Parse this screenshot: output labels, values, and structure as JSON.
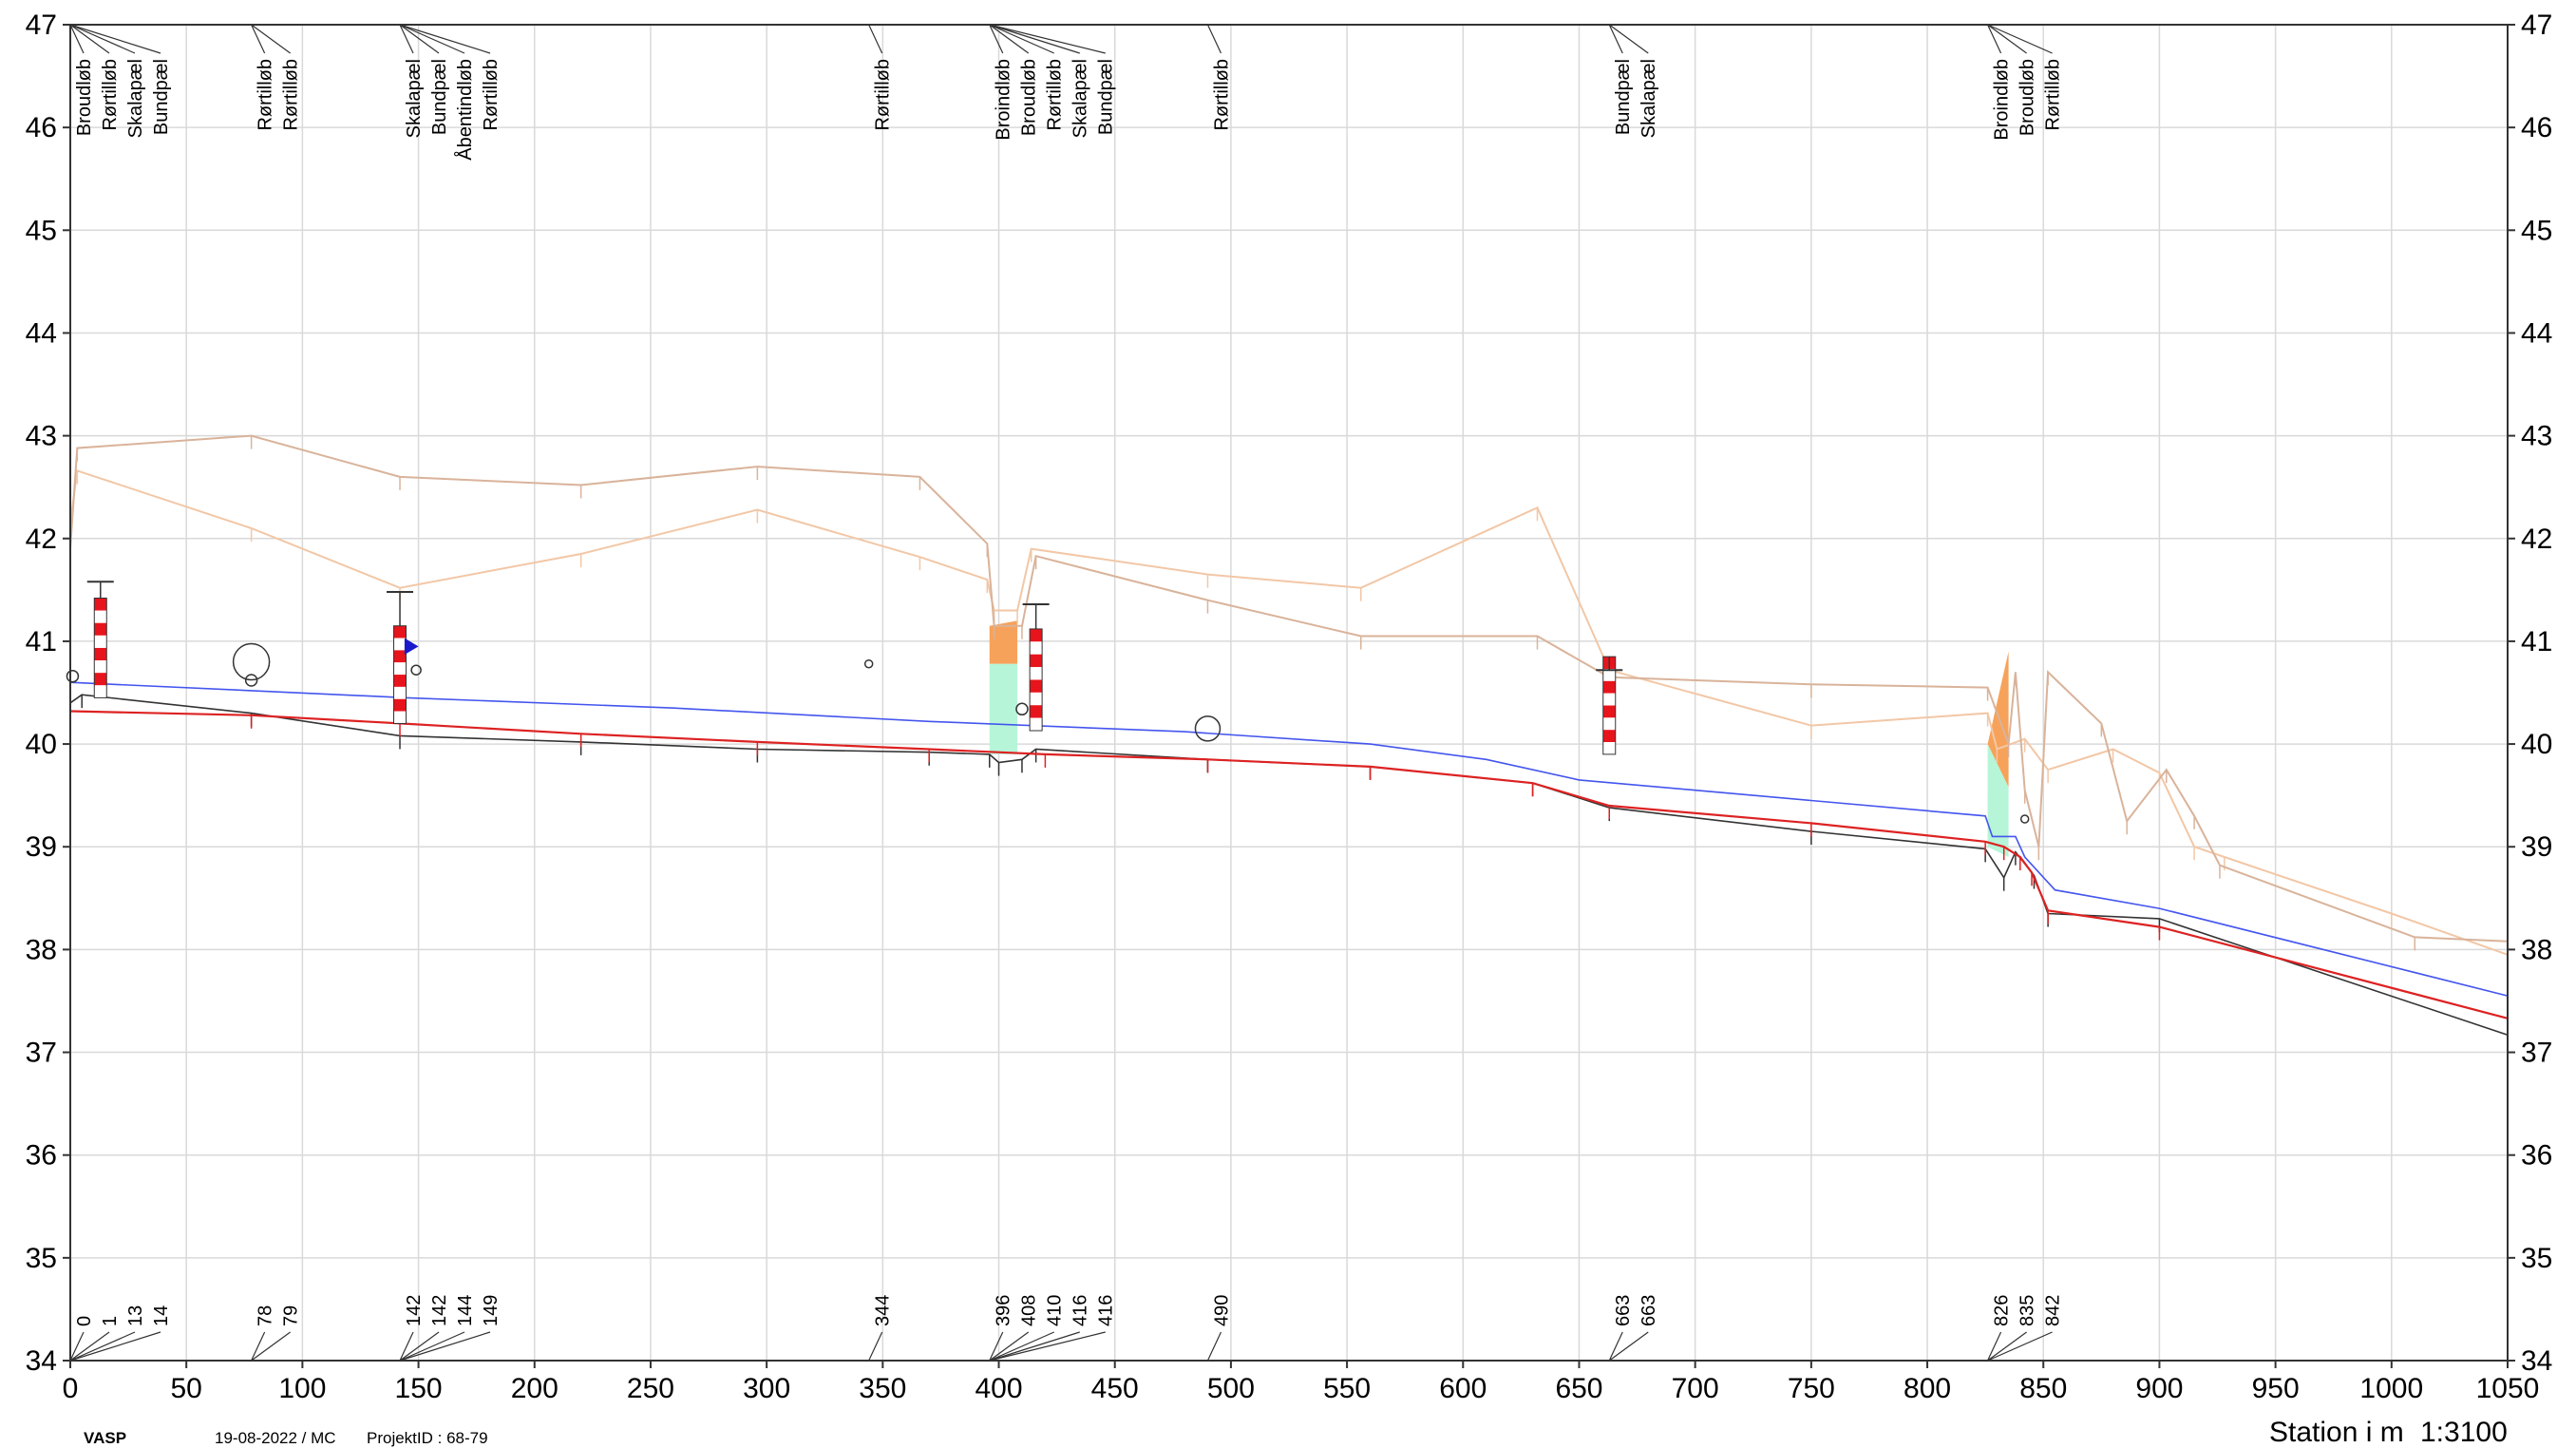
{
  "footer": {
    "logo": "VASP",
    "date_user": "19-08-2022 / MC",
    "project": "ProjektID : 68-79",
    "station_label": "Station i m",
    "scale": "1:3100"
  },
  "axes": {
    "x_range": [
      0,
      1050
    ],
    "y_range": [
      34,
      47
    ],
    "x_ticks": [
      0,
      50,
      100,
      150,
      200,
      250,
      300,
      350,
      400,
      450,
      500,
      550,
      600,
      650,
      700,
      750,
      800,
      850,
      900,
      950,
      1000,
      1050
    ],
    "y_ticks": [
      34,
      35,
      36,
      37,
      38,
      39,
      40,
      41,
      42,
      43,
      44,
      45,
      46,
      47
    ]
  },
  "colors": {
    "grid": "#d9d9d9",
    "frame": "#333333",
    "water_line": "#4455ee",
    "bottom_line": "#dd2222",
    "pipe_bottom_line": "#333333",
    "terrain_1": "#d9b39a",
    "terrain_2": "#f2c7a6",
    "well_red": "#e8141c",
    "fill_orange": "#f7a25a",
    "fill_green": "#b6f5d8",
    "marker_blue": "#1a1acc"
  },
  "object_labels": [
    {
      "station": 0,
      "lines": [
        "Broudløb",
        "Rørtilløb",
        "Skalapæl",
        "Bundpæl"
      ]
    },
    {
      "station": 78,
      "lines": [
        "Rørtilløb",
        "Rørtilløb"
      ]
    },
    {
      "station": 142,
      "lines": [
        "Skalapæl",
        "Bundpæl",
        "Åbentindløb",
        "Rørtilløb"
      ]
    },
    {
      "station": 344,
      "lines": [
        "Rørtilløb"
      ]
    },
    {
      "station": 396,
      "lines": [
        "Broindløb",
        "Broudløb",
        "Rørtilløb",
        "Skalapæl",
        "Bundpæl"
      ]
    },
    {
      "station": 490,
      "lines": [
        "Rørtilløb"
      ]
    },
    {
      "station": 663,
      "lines": [
        "Bundpæl",
        "Skalapæl"
      ]
    },
    {
      "station": 826,
      "lines": [
        "Broindløb",
        "Broudløb",
        "Rørtilløb"
      ]
    }
  ],
  "station_labels": [
    {
      "station": 0,
      "lines": [
        "0",
        "1",
        "13",
        "14"
      ]
    },
    {
      "station": 78,
      "lines": [
        "78",
        "79"
      ]
    },
    {
      "station": 142,
      "lines": [
        "142",
        "142",
        "144",
        "149"
      ]
    },
    {
      "station": 344,
      "lines": [
        "344"
      ]
    },
    {
      "station": 396,
      "lines": [
        "396",
        "408",
        "410",
        "416",
        "416"
      ]
    },
    {
      "station": 490,
      "lines": [
        "490"
      ]
    },
    {
      "station": 663,
      "lines": [
        "663",
        "663"
      ]
    },
    {
      "station": 826,
      "lines": [
        "826",
        "835",
        "842"
      ]
    }
  ],
  "chart_data": {
    "type": "line",
    "title": "",
    "xlabel": "Station i m",
    "ylabel": "",
    "xlim": [
      0,
      1050
    ],
    "ylim": [
      34,
      47
    ],
    "grid": true,
    "series": [
      {
        "key": "water",
        "points": [
          [
            0,
            40.6
          ],
          [
            145,
            40.45
          ],
          [
            260,
            40.35
          ],
          [
            370,
            40.22
          ],
          [
            480,
            40.12
          ],
          [
            560,
            40.0
          ],
          [
            610,
            39.85
          ],
          [
            650,
            39.65
          ],
          [
            700,
            39.55
          ],
          [
            825,
            39.3
          ],
          [
            828,
            39.1
          ],
          [
            835,
            39.1
          ],
          [
            838,
            39.1
          ],
          [
            842,
            38.9
          ],
          [
            855,
            38.58
          ],
          [
            900,
            38.4
          ],
          [
            1050,
            37.55
          ]
        ]
      },
      {
        "key": "bottom",
        "points": [
          [
            0,
            40.32
          ],
          [
            78,
            40.28
          ],
          [
            142,
            40.2
          ],
          [
            220,
            40.1
          ],
          [
            296,
            40.02
          ],
          [
            370,
            39.95
          ],
          [
            420,
            39.9
          ],
          [
            490,
            39.85
          ],
          [
            560,
            39.78
          ],
          [
            630,
            39.62
          ],
          [
            663,
            39.4
          ],
          [
            750,
            39.23
          ],
          [
            825,
            39.05
          ],
          [
            833,
            39.0
          ],
          [
            840,
            38.9
          ],
          [
            845,
            38.75
          ],
          [
            852,
            38.38
          ],
          [
            900,
            38.22
          ],
          [
            1050,
            37.33
          ]
        ]
      },
      {
        "key": "pipe_bottom",
        "points": [
          [
            0,
            40.4
          ],
          [
            5,
            40.48
          ],
          [
            78,
            40.3
          ],
          [
            142,
            40.08
          ],
          [
            220,
            40.02
          ],
          [
            296,
            39.95
          ],
          [
            370,
            39.92
          ],
          [
            396,
            39.9
          ],
          [
            400,
            39.82
          ],
          [
            410,
            39.85
          ],
          [
            416,
            39.95
          ],
          [
            490,
            39.85
          ],
          [
            560,
            39.78
          ],
          [
            630,
            39.62
          ],
          [
            663,
            39.38
          ],
          [
            750,
            39.15
          ],
          [
            825,
            38.98
          ],
          [
            833,
            38.7
          ],
          [
            838,
            38.95
          ],
          [
            846,
            38.72
          ],
          [
            852,
            38.35
          ],
          [
            900,
            38.3
          ],
          [
            1050,
            37.17
          ]
        ]
      },
      {
        "key": "terrain_1",
        "points": [
          [
            0,
            41.9
          ],
          [
            3,
            42.88
          ],
          [
            78,
            43.0
          ],
          [
            142,
            42.6
          ],
          [
            220,
            42.52
          ],
          [
            296,
            42.7
          ],
          [
            366,
            42.6
          ],
          [
            395,
            41.95
          ],
          [
            398,
            41.15
          ],
          [
            410,
            41.15
          ],
          [
            416,
            41.83
          ],
          [
            490,
            41.4
          ],
          [
            556,
            41.05
          ],
          [
            632,
            41.05
          ],
          [
            663,
            40.65
          ],
          [
            750,
            40.58
          ],
          [
            826,
            40.55
          ],
          [
            835,
            40.0
          ],
          [
            838,
            40.7
          ],
          [
            842,
            39.55
          ],
          [
            848,
            39.0
          ],
          [
            852,
            40.7
          ],
          [
            875,
            40.2
          ],
          [
            886,
            39.25
          ],
          [
            903,
            39.75
          ],
          [
            915,
            39.3
          ],
          [
            926,
            38.82
          ],
          [
            1010,
            38.12
          ],
          [
            1050,
            38.08
          ]
        ]
      },
      {
        "key": "terrain_2",
        "points": [
          [
            0,
            42.15
          ],
          [
            3,
            42.66
          ],
          [
            78,
            42.1
          ],
          [
            142,
            41.52
          ],
          [
            220,
            41.85
          ],
          [
            296,
            42.28
          ],
          [
            366,
            41.82
          ],
          [
            395,
            41.6
          ],
          [
            398,
            41.3
          ],
          [
            408,
            41.3
          ],
          [
            414,
            41.9
          ],
          [
            490,
            41.65
          ],
          [
            556,
            41.52
          ],
          [
            632,
            42.3
          ],
          [
            663,
            40.72
          ],
          [
            750,
            40.18
          ],
          [
            826,
            40.3
          ],
          [
            830,
            39.95
          ],
          [
            842,
            40.05
          ],
          [
            852,
            39.75
          ],
          [
            880,
            39.95
          ],
          [
            900,
            39.72
          ],
          [
            915,
            39.0
          ],
          [
            928,
            38.9
          ],
          [
            1000,
            38.35
          ],
          [
            1050,
            37.95
          ]
        ]
      }
    ]
  }
}
